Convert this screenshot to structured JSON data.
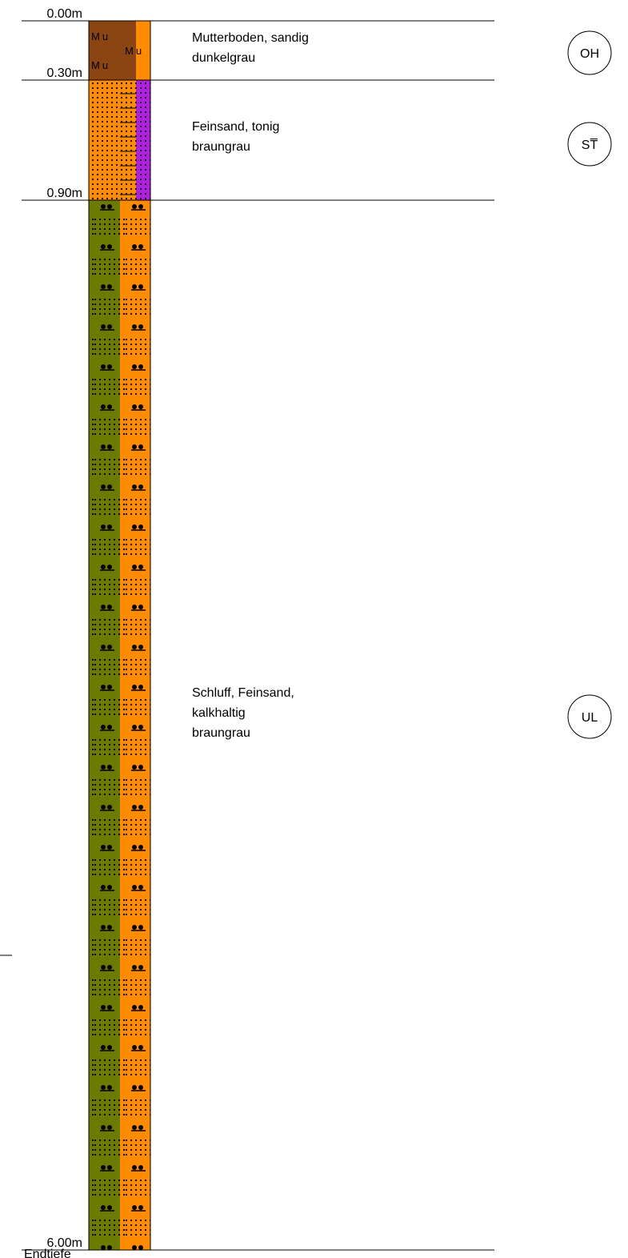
{
  "depths": [
    "0.00m",
    "0.30m",
    "0.90m",
    "6.00m"
  ],
  "end_label": "Endtiefe",
  "symbol_text": "Mu",
  "layers": [
    {
      "description": [
        "Mutterboden, sandig",
        "dunkelgrau"
      ],
      "code": "OH"
    },
    {
      "description": [
        "Feinsand, tonig",
        "braungrau"
      ],
      "code": "ST̅"
    },
    {
      "description": [
        "Schluff, Feinsand,",
        "kalkhaltig",
        "braungrau"
      ],
      "code": "UL"
    }
  ]
}
